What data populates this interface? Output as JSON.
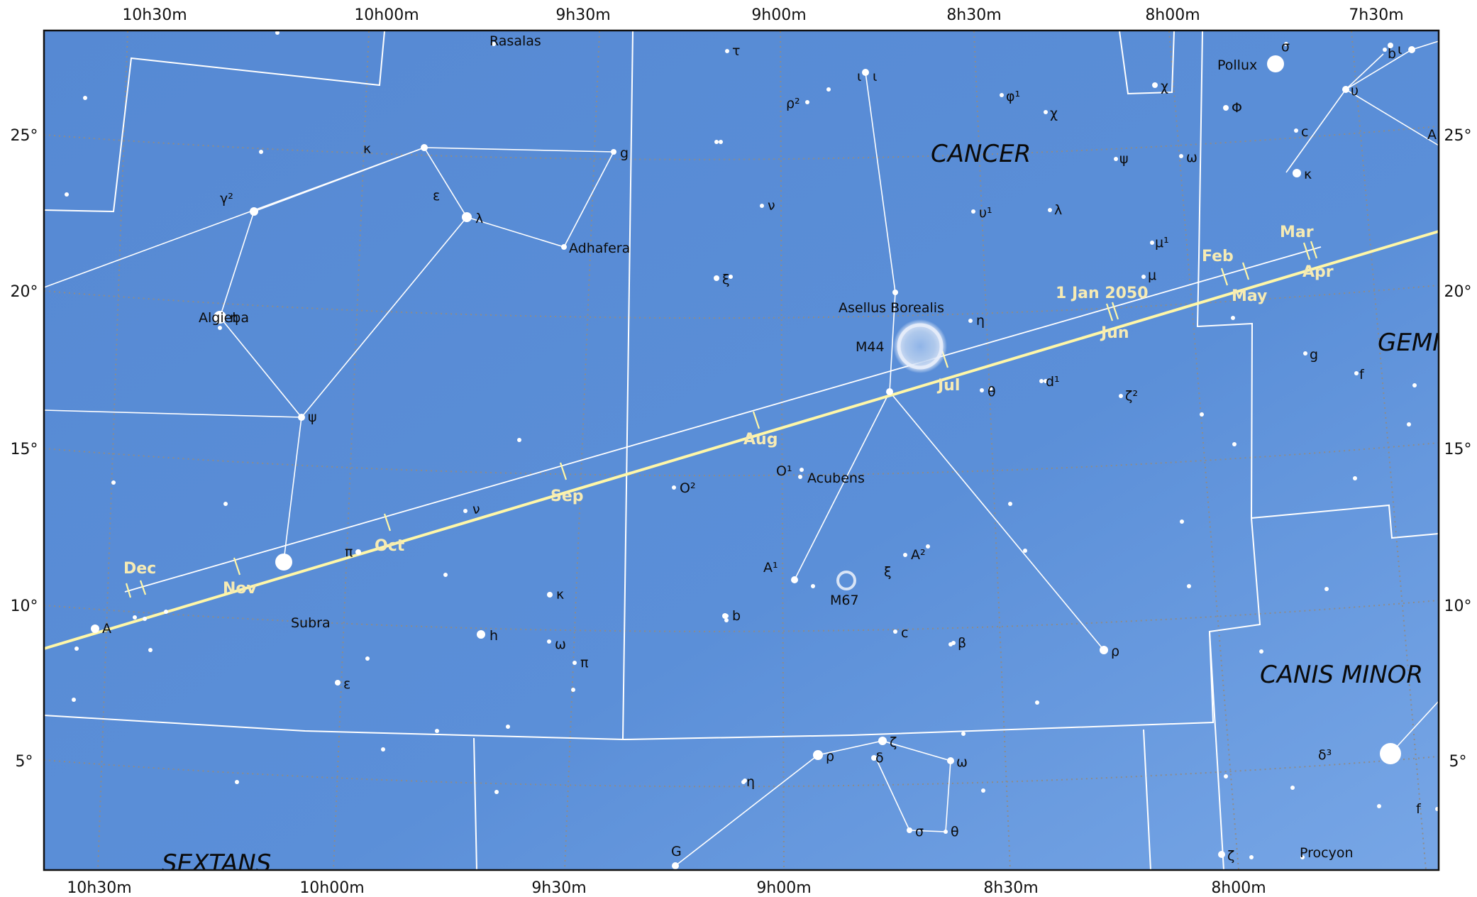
{
  "colors": {
    "sky": "#5b8fd6",
    "sky_light": "#6e9fe3",
    "ecliptic": "#fff7a8",
    "month_text": "#f6ebb4",
    "boundary": "#ffffff",
    "grid": "#8a8a8a"
  },
  "ra_top": [
    "10h30m",
    "10h00m",
    "9h30m",
    "9h00m",
    "8h30m",
    "8h00m",
    "7h30m"
  ],
  "ra_bottom": [
    "10h30m",
    "10h00m",
    "9h30m",
    "9h00m",
    "8h30m",
    "8h00m"
  ],
  "dec_left": [
    "25°",
    "20°",
    "15°",
    "10°",
    "5°"
  ],
  "dec_right": [
    "25°",
    "20°",
    "15°",
    "10°",
    "5°"
  ],
  "constellations": [
    "CANCER",
    "GEMI",
    "CANIS MINOR",
    "SEXTANS"
  ],
  "months": [
    "Dec",
    "Nov",
    "Oct",
    "Sep",
    "Aug",
    "Jul",
    "Jun",
    "May",
    "Apr",
    "Mar",
    "Feb",
    "1 Jan 2050"
  ],
  "objects": [
    "M44",
    "M67"
  ],
  "stars": [
    "Pollux",
    "σ",
    "b",
    "ι",
    "υ",
    "κ",
    "A",
    "Φ",
    "c",
    "χ",
    "φ¹",
    "χ",
    "ι",
    "ι",
    "τ",
    "ρ²",
    "ψ",
    "ω",
    "υ¹",
    "λ",
    "μ¹",
    "μ",
    "ν",
    "ξ",
    "Asellus Borealis",
    "η",
    "d¹",
    "ζ²",
    "θ",
    "g",
    "f",
    "Rasalas",
    "κ",
    "g",
    "ε",
    "λ",
    "Adhafera",
    "γ²",
    "Algieba",
    "η",
    "ψ",
    "ν",
    "π",
    "O²",
    "O¹",
    "Acubens",
    "A¹",
    "A²",
    "ξ",
    "κ",
    "b",
    "c",
    "β",
    "ρ",
    "A",
    "Subra",
    "h",
    "ω",
    "π",
    "ε",
    "ζ",
    "ρ",
    "δ",
    "ω",
    "η",
    "σ",
    "θ",
    "G",
    "ζ",
    "Procyon",
    "δ³",
    "f"
  ]
}
